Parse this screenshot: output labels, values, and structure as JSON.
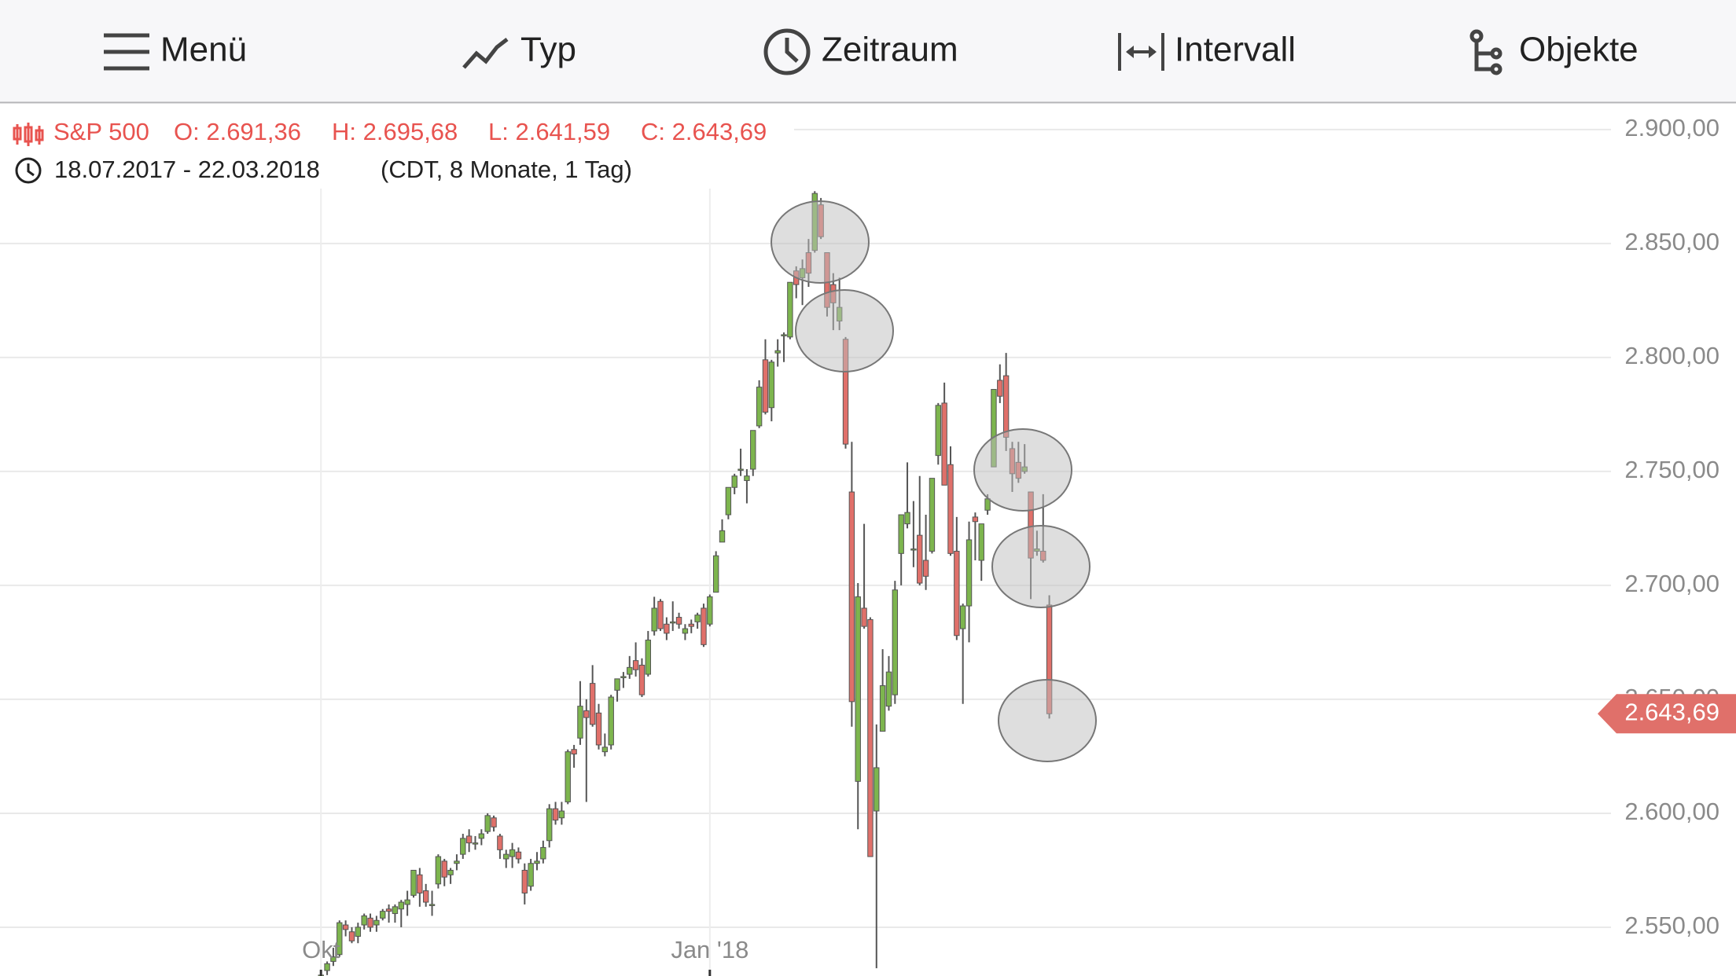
{
  "toolbar": [
    "Menü",
    "Typ",
    "Zeitraum",
    "Intervall",
    "Objekte"
  ],
  "header": {
    "symbol": "S&P 500",
    "ohlc": [
      "O: 2.691,36",
      "H: 2.695,68",
      "L: 2.641,59",
      "C: 2.643,69"
    ],
    "range": "18.07.2017 - 22.03.2018",
    "details": "(CDT, 8 Monate, 1 Tag)"
  },
  "chart_data": {
    "type": "candlestick",
    "up_color": "#7db54e",
    "down_color": "#e0706a",
    "grid": true,
    "last_price_label": "2.643,69",
    "xlim": [
      -52,
      209
    ],
    "xticks": [
      {
        "value": 0,
        "label": "Okt"
      },
      {
        "value": 63,
        "label": "Jan '18"
      }
    ],
    "ylim": [
      2528.6,
      2911.7
    ],
    "yticks": [
      {
        "value": 2550,
        "label": "2.550,00"
      },
      {
        "value": 2600,
        "label": "2.600,00"
      },
      {
        "value": 2650,
        "label": "2.650,00"
      },
      {
        "value": 2700,
        "label": "2.700,00"
      },
      {
        "value": 2750,
        "label": "2.750,00"
      },
      {
        "value": 2800,
        "label": "2.800,00"
      },
      {
        "value": 2850,
        "label": "2.850,00"
      },
      {
        "value": 2900,
        "label": "2.900,00"
      }
    ],
    "open": [
      2521,
      2531,
      2535,
      2538,
      2551,
      2548,
      2546,
      2551,
      2554,
      2551,
      2554,
      2558,
      2556,
      2558,
      2560,
      2564,
      2573,
      2566,
      2560,
      2569,
      2579,
      2573,
      2578,
      2582,
      2590,
      2587,
      2589,
      2592,
      2598,
      2590,
      2580,
      2581,
      2583,
      2575,
      2568,
      2578,
      2580,
      2588,
      2602,
      2598,
      2605,
      2628,
      2633,
      2645,
      2657,
      2644,
      2627,
      2630,
      2654,
      2660,
      2661,
      2667,
      2665,
      2661,
      2680,
      2693,
      2683,
      2684,
      2686,
      2679,
      2683,
      2684,
      2690,
      2683,
      2697,
      2719,
      2731,
      2743,
      2751,
      2746,
      2751,
      2770,
      2799,
      2778,
      2802,
      2810,
      2809,
      2838,
      2835,
      2846,
      2847,
      2867,
      2846,
      2832,
      2816,
      2808,
      2741,
      2614,
      2690,
      2685,
      2601,
      2636,
      2647,
      2652,
      2714,
      2727,
      2716,
      2722,
      2711,
      2715,
      2757,
      2780,
      2753,
      2715,
      2681,
      2691,
      2730,
      2711,
      2733,
      2752,
      2790,
      2792,
      2760,
      2754,
      2750,
      2741,
      2715,
      2715,
      2691.36
    ],
    "high": [
      2530,
      2535,
      2541,
      2553,
      2553,
      2550,
      2552,
      2556,
      2556,
      2555,
      2558,
      2560,
      2560,
      2562,
      2566,
      2575,
      2576,
      2569,
      2566,
      2582,
      2580,
      2576,
      2582,
      2591,
      2593,
      2590,
      2593,
      2600,
      2599,
      2591,
      2584,
      2587,
      2585,
      2578,
      2580,
      2583,
      2588,
      2604,
      2605,
      2605,
      2628,
      2630,
      2658,
      2650,
      2665,
      2648,
      2635,
      2652,
      2659,
      2662,
      2669,
      2675,
      2668,
      2680,
      2695,
      2694,
      2686,
      2693,
      2688,
      2683,
      2685,
      2688,
      2692,
      2696,
      2715,
      2729,
      2743,
      2749,
      2760,
      2751,
      2768,
      2790,
      2808,
      2799,
      2808,
      2811,
      2833,
      2840,
      2843,
      2852,
      2873,
      2870,
      2846,
      2837,
      2835,
      2809,
      2763,
      2701,
      2727,
      2686,
      2639,
      2672,
      2669,
      2702,
      2731,
      2754,
      2737,
      2748,
      2731,
      2747,
      2780,
      2789,
      2761,
      2730,
      2692,
      2728,
      2732,
      2727,
      2740,
      2786,
      2797,
      2802,
      2763,
      2763,
      2762,
      2741,
      2724,
      2740,
      2695.68
    ],
    "low": [
      2518,
      2529,
      2533,
      2537,
      2546,
      2543,
      2543,
      2549,
      2548,
      2548,
      2553,
      2552,
      2552,
      2550,
      2555,
      2563,
      2559,
      2559,
      2555,
      2567,
      2568,
      2569,
      2575,
      2580,
      2583,
      2584,
      2586,
      2591,
      2592,
      2580,
      2576,
      2576,
      2578,
      2560,
      2566,
      2575,
      2578,
      2585,
      2595,
      2595,
      2604,
      2620,
      2630,
      2605,
      2638,
      2628,
      2625,
      2628,
      2649,
      2655,
      2659,
      2660,
      2651,
      2660,
      2678,
      2680,
      2676,
      2680,
      2681,
      2676,
      2679,
      2681,
      2673,
      2682,
      2697,
      2719,
      2729,
      2740,
      2748,
      2736,
      2748,
      2769,
      2775,
      2772,
      2796,
      2798,
      2808,
      2826,
      2823,
      2831,
      2846,
      2852,
      2818,
      2812,
      2812,
      2760,
      2638,
      2593,
      2681,
      2581,
      2532,
      2636,
      2645,
      2648,
      2700,
      2725,
      2708,
      2700,
      2698,
      2714,
      2753,
      2744,
      2713,
      2676,
      2648,
      2675,
      2711,
      2702,
      2731,
      2752,
      2780,
      2759,
      2741,
      2745,
      2749,
      2694,
      2713,
      2710,
      2641.59
    ],
    "close": [
      2529,
      2534,
      2537,
      2552,
      2549,
      2544,
      2550,
      2555,
      2550,
      2553,
      2557,
      2557,
      2559,
      2561,
      2562,
      2575,
      2565,
      2561,
      2560,
      2581,
      2572,
      2575,
      2579,
      2589,
      2587,
      2587,
      2591,
      2599,
      2594,
      2584,
      2582,
      2584,
      2580,
      2565,
      2578,
      2579,
      2585,
      2602,
      2597,
      2601,
      2627,
      2626,
      2647,
      2642,
      2639,
      2630,
      2629,
      2651,
      2659,
      2660,
      2664,
      2663,
      2652,
      2676,
      2690,
      2681,
      2679,
      2684,
      2683,
      2681,
      2682,
      2687,
      2674,
      2695,
      2713,
      2724,
      2743,
      2748,
      2751,
      2748,
      2768,
      2787,
      2776,
      2798,
      2803,
      2810,
      2833,
      2832,
      2839,
      2837,
      2872,
      2853,
      2822,
      2824,
      2822,
      2762,
      2649,
      2695,
      2682,
      2581,
      2620,
      2656,
      2662,
      2698,
      2731,
      2732,
      2716,
      2701,
      2704,
      2747,
      2779,
      2744,
      2714,
      2678,
      2691,
      2720,
      2728,
      2727,
      2738,
      2786,
      2783,
      2765,
      2749,
      2747,
      2752,
      2712,
      2716,
      2711,
      2643.69
    ]
  }
}
